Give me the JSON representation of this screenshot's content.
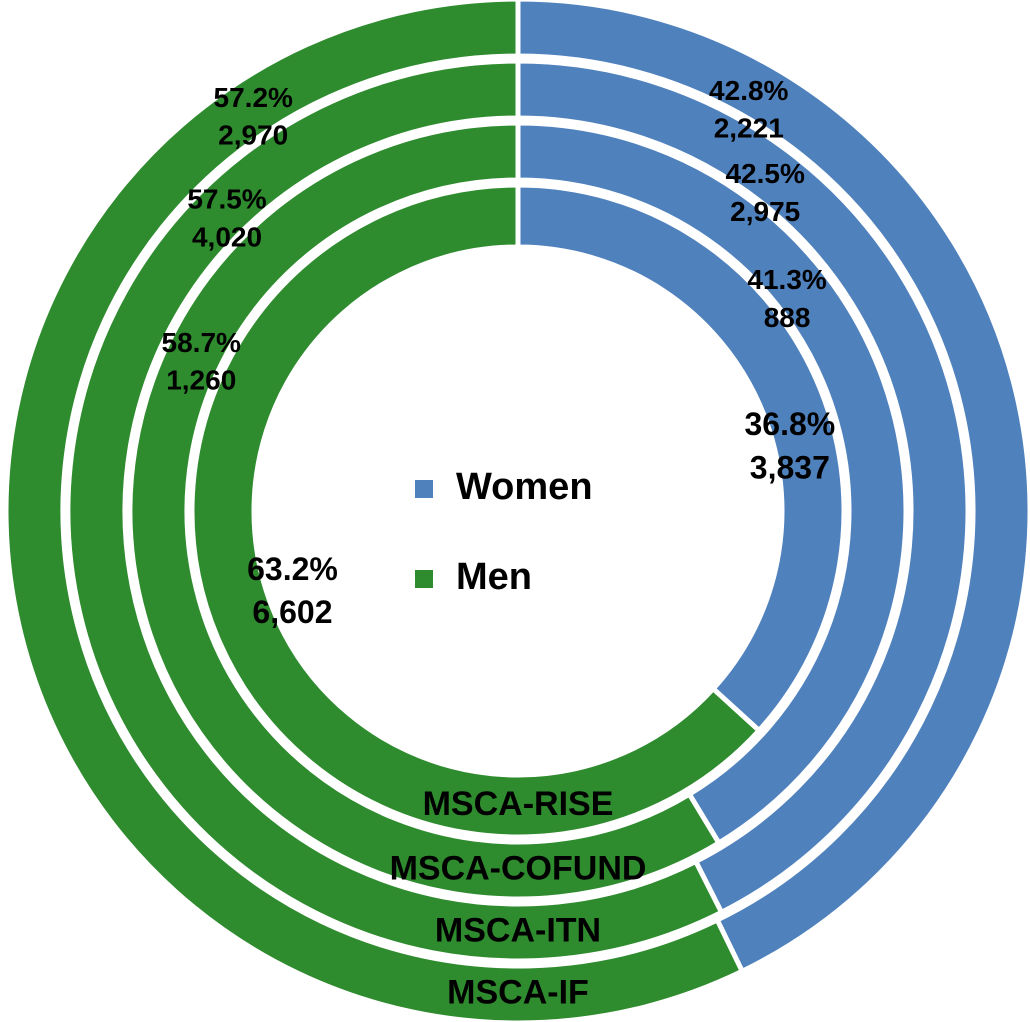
{
  "chart_data": {
    "type": "doughnut",
    "legend_position": "center",
    "colors": {
      "Women": "#4f81bd",
      "Men": "#2e8b2e"
    },
    "legend": [
      {
        "name": "Women",
        "color": "#4f81bd"
      },
      {
        "name": "Men",
        "color": "#2e8b2e"
      }
    ],
    "series": [
      {
        "name": "MSCA-IF",
        "women": 2221,
        "men": 2970,
        "women_pct": "42.8%",
        "men_pct": "57.2%",
        "women_count": "2,221",
        "men_count": "2,970"
      },
      {
        "name": "MSCA-ITN",
        "women": 2975,
        "men": 4020,
        "women_pct": "42.5%",
        "men_pct": "57.5%",
        "women_count": "2,975",
        "men_count": "4,020"
      },
      {
        "name": "MSCA-COFUND",
        "women": 888,
        "men": 1260,
        "women_pct": "41.3%",
        "men_pct": "58.7%",
        "women_count": "888",
        "men_count": "1,260"
      },
      {
        "name": "MSCA-RISE",
        "women": 3837,
        "men": 6602,
        "women_pct": "36.8%",
        "men_pct": "63.2%",
        "women_count": "3,837",
        "men_count": "6,602"
      }
    ]
  }
}
